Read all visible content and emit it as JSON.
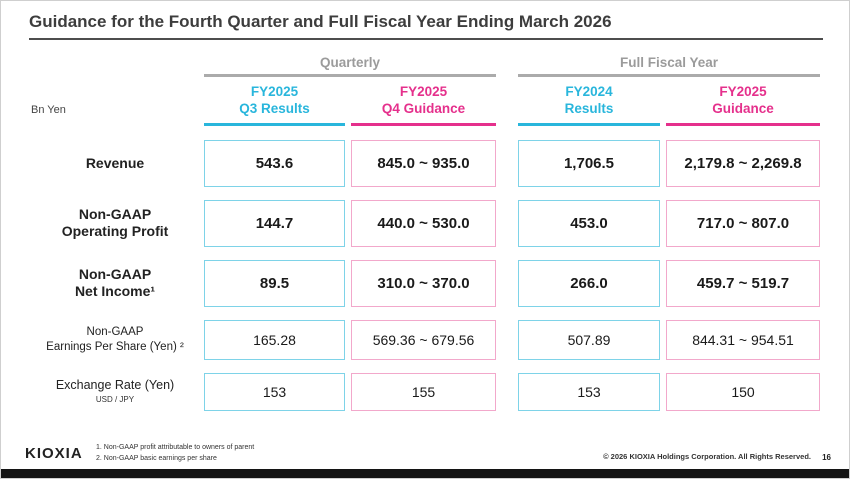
{
  "slide": {
    "title": "Guidance for the Fourth Quarter and Full Fiscal Year Ending March 2026",
    "unit_label": "Bn Yen"
  },
  "groups": [
    {
      "label": "Quarterly"
    },
    {
      "label": "Full Fiscal Year"
    }
  ],
  "columns": [
    {
      "line1": "FY2025",
      "line2": "Q3 Results",
      "type": "results"
    },
    {
      "line1": "FY2025",
      "line2": "Q4 Guidance",
      "type": "guidance"
    },
    {
      "line1": "FY2024",
      "line2": "Results",
      "type": "results"
    },
    {
      "line1": "FY2025",
      "line2": "Guidance",
      "type": "guidance"
    }
  ],
  "rows": [
    {
      "label_line1": "Revenue",
      "label_line2": "",
      "values": [
        "543.6",
        "845.0 ~ 935.0",
        "1,706.5",
        "2,179.8 ~ 2,269.8"
      ]
    },
    {
      "label_line1": "Non-GAAP",
      "label_line2": "Operating Profit",
      "values": [
        "144.7",
        "440.0 ~ 530.0",
        "453.0",
        "717.0 ~ 807.0"
      ]
    },
    {
      "label_line1": "Non-GAAP",
      "label_line2": "Net Income¹",
      "values": [
        "89.5",
        "310.0 ~ 370.0",
        "266.0",
        "459.7 ~ 519.7"
      ]
    },
    {
      "label_line1": "Non-GAAP",
      "label_line2": "Earnings Per Share (Yen) ²",
      "values": [
        "165.28",
        "569.36 ~ 679.56",
        "507.89",
        "844.31 ~ 954.51"
      ]
    },
    {
      "label_line1": "Exchange Rate (Yen)",
      "label_line2": "USD / JPY",
      "values": [
        "153",
        "155",
        "153",
        "150"
      ]
    }
  ],
  "footnotes": [
    "1. Non-GAAP profit attributable to owners of parent",
    "2. Non-GAAP basic earnings per share"
  ],
  "footer": {
    "logo": "KIOXIA",
    "copyright": "© 2026 KIOXIA Holdings Corporation. All Rights Reserved.",
    "page": "16"
  },
  "colors": {
    "cyan": "#29b6dc",
    "pink": "#e5308c",
    "cyan_border": "#7ed3e8",
    "pink_border": "#f2a8cb",
    "gray": "#9b9b9b"
  }
}
